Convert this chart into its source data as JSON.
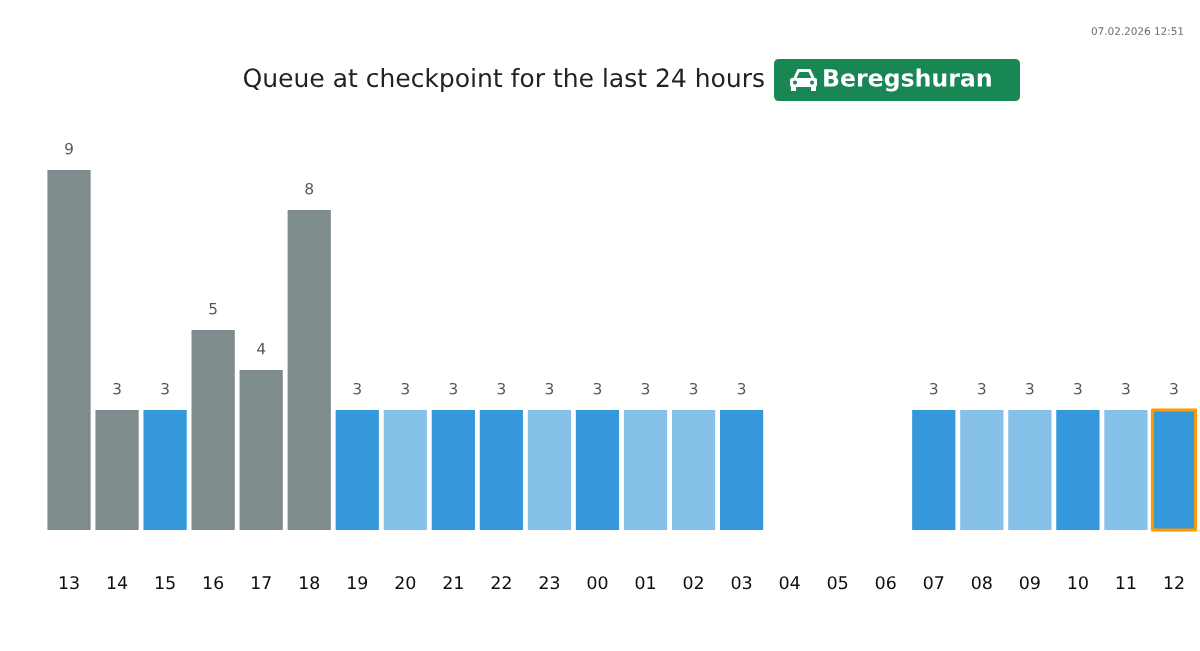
{
  "chart_data": {
    "type": "bar",
    "title": "Queue at checkpoint for the last 24 hours",
    "subtitle": "Beregshuran",
    "annotations": [
      "07.02.2026 12:51"
    ],
    "categories": [
      "13",
      "14",
      "15",
      "16",
      "17",
      "18",
      "19",
      "20",
      "21",
      "22",
      "23",
      "00",
      "01",
      "02",
      "03",
      "04",
      "05",
      "06",
      "07",
      "08",
      "09",
      "10",
      "11",
      "12"
    ],
    "values": [
      9,
      3,
      3,
      5,
      4,
      8,
      3,
      3,
      3,
      3,
      3,
      3,
      3,
      3,
      3,
      null,
      null,
      null,
      3,
      3,
      3,
      3,
      3,
      3
    ],
    "colors": [
      "#7f8c8d",
      "#7f8c8d",
      "#3498db",
      "#7f8c8d",
      "#7f8c8d",
      "#7f8c8d",
      "#3498db",
      "#85c1e9",
      "#3498db",
      "#3498db",
      "#85c1e9",
      "#3498db",
      "#85c1e9",
      "#85c1e9",
      "#3498db",
      null,
      null,
      null,
      "#3498db",
      "#85c1e9",
      "#85c1e9",
      "#3498db",
      "#85c1e9",
      "#3498db"
    ],
    "data_labels": true
  }
}
